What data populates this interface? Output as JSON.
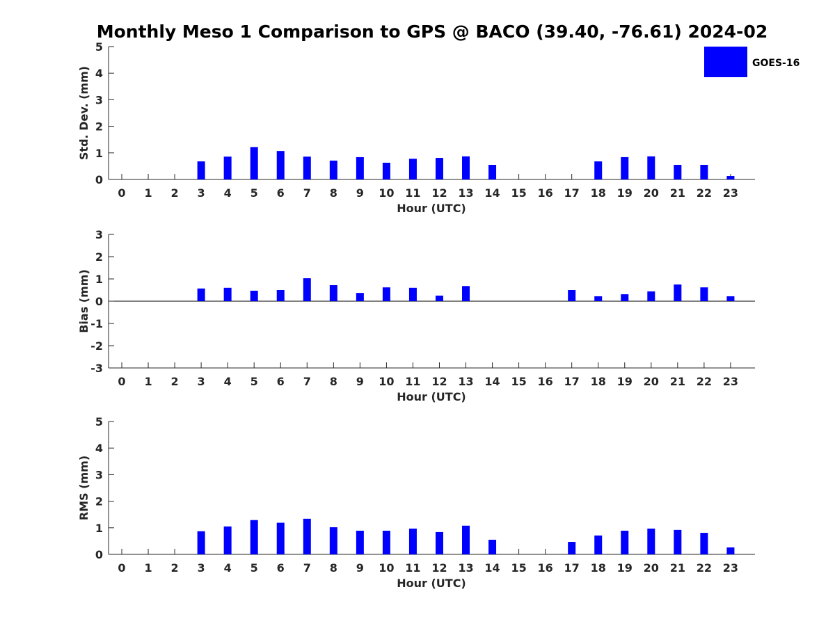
{
  "chart_data": [
    {
      "type": "bar",
      "title": "Monthly Meso 1 Comparison to GPS @ BACO (39.40, -76.61) 2024-02",
      "xlabel": "Hour (UTC)",
      "ylabel": "Std. Dev. (mm)",
      "ylim": [
        0,
        5
      ],
      "yticks": [
        0,
        1,
        2,
        3,
        4,
        5
      ],
      "categories": [
        "0",
        "1",
        "2",
        "3",
        "4",
        "5",
        "6",
        "7",
        "8",
        "9",
        "10",
        "11",
        "12",
        "13",
        "14",
        "15",
        "16",
        "17",
        "18",
        "19",
        "20",
        "21",
        "22",
        "23"
      ],
      "series": [
        {
          "name": "GOES-16",
          "values": [
            null,
            null,
            null,
            0.68,
            0.86,
            1.22,
            1.07,
            0.86,
            0.71,
            0.84,
            0.63,
            0.78,
            0.81,
            0.87,
            0.55,
            null,
            null,
            null,
            0.68,
            0.84,
            0.87,
            0.55,
            0.55,
            0.13
          ]
        }
      ],
      "legend": {
        "position": "top-right",
        "entries": [
          "GOES-16"
        ]
      }
    },
    {
      "type": "bar",
      "xlabel": "Hour (UTC)",
      "ylabel": "Bias (mm)",
      "ylim": [
        -3,
        3
      ],
      "yticks": [
        -3,
        -2,
        -1,
        0,
        1,
        2,
        3
      ],
      "categories": [
        "0",
        "1",
        "2",
        "3",
        "4",
        "5",
        "6",
        "7",
        "8",
        "9",
        "10",
        "11",
        "12",
        "13",
        "14",
        "15",
        "16",
        "17",
        "18",
        "19",
        "20",
        "21",
        "22",
        "23"
      ],
      "series": [
        {
          "name": "GOES-16",
          "values": [
            null,
            null,
            null,
            0.57,
            0.6,
            0.47,
            0.5,
            1.03,
            0.72,
            0.37,
            0.62,
            0.6,
            0.25,
            0.68,
            null,
            null,
            null,
            0.5,
            0.22,
            0.31,
            0.44,
            0.75,
            0.62,
            0.22
          ]
        }
      ]
    },
    {
      "type": "bar",
      "xlabel": "Hour (UTC)",
      "ylabel": "RMS (mm)",
      "ylim": [
        0,
        5
      ],
      "yticks": [
        0,
        1,
        2,
        3,
        4,
        5
      ],
      "categories": [
        "0",
        "1",
        "2",
        "3",
        "4",
        "5",
        "6",
        "7",
        "8",
        "9",
        "10",
        "11",
        "12",
        "13",
        "14",
        "15",
        "16",
        "17",
        "18",
        "19",
        "20",
        "21",
        "22",
        "23"
      ],
      "series": [
        {
          "name": "GOES-16",
          "values": [
            null,
            null,
            null,
            0.87,
            1.05,
            1.29,
            1.19,
            1.34,
            1.02,
            0.89,
            0.89,
            0.97,
            0.84,
            1.08,
            0.55,
            null,
            null,
            0.47,
            0.71,
            0.89,
            0.97,
            0.92,
            0.81,
            0.26
          ]
        }
      ]
    }
  ],
  "colors": {
    "bar": "#0000ff",
    "axis": "#262626",
    "background": "#ffffff"
  }
}
